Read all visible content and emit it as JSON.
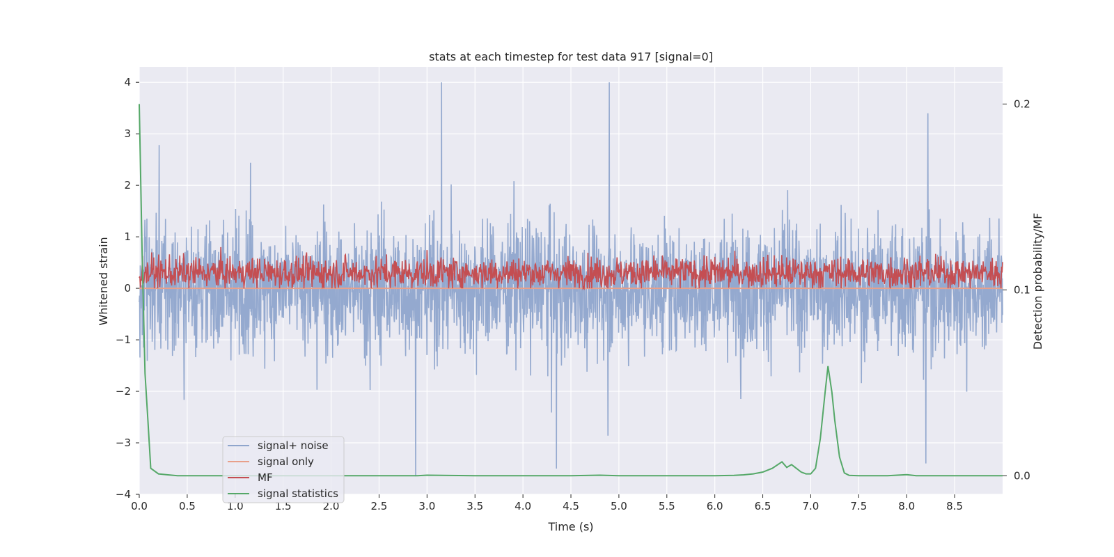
{
  "chart_data": {
    "type": "line",
    "title": "stats at each timestep for test data 917 [signal=0]",
    "xlabel": "Time (s)",
    "ylabel_left": "Whitened strain",
    "ylabel_right": "Detection probability/MF",
    "xlim": [
      0.0,
      9.0
    ],
    "ylim_left": [
      -4.0,
      4.3
    ],
    "ylim_right": [
      -0.01,
      0.22
    ],
    "x_ticks": [
      "0.0",
      "0.5",
      "1.0",
      "1.5",
      "2.0",
      "2.5",
      "3.0",
      "3.5",
      "4.0",
      "4.5",
      "5.0",
      "5.5",
      "6.0",
      "6.5",
      "7.0",
      "7.5",
      "8.0",
      "8.5"
    ],
    "y_ticks_left": [
      "4",
      "3",
      "2",
      "1",
      "0",
      "−1",
      "−2",
      "−3",
      "−4"
    ],
    "y_ticks_right": [
      "0.2",
      "0.1",
      "0.0"
    ],
    "grid": true,
    "legend_position": "lower-left",
    "colors": {
      "background": "#eaeaf2",
      "grid": "#ffffff",
      "noise": "#8fa5cc",
      "signal_only": "#e8a08a",
      "mf": "#c44e52",
      "stat": "#55a868"
    },
    "series": [
      {
        "name": "signal+ noise",
        "axis": "left",
        "description_values": "noisy whitened strain, roughly symmetric about 0, amplitude mostly within ±2, peaks near 4 at t=3.15 and t=4.9, dips near -3.65 at t=2.88",
        "peaks": [
          [
            3.15,
            4.0
          ],
          [
            4.9,
            4.0
          ],
          [
            2.88,
            -3.65
          ],
          [
            4.35,
            -3.5
          ],
          [
            8.2,
            -3.4
          ],
          [
            8.22,
            3.4
          ]
        ]
      },
      {
        "name": "signal only",
        "axis": "left",
        "x": [
          0.0,
          9.0
        ],
        "y": [
          0.0,
          0.0
        ]
      },
      {
        "name": "MF",
        "axis": "left",
        "description_values": "matched filter output oscillating between about 0 and 0.9",
        "range": [
          0.0,
          0.95
        ]
      },
      {
        "name": "signal statistics",
        "axis": "right",
        "x": [
          0.0,
          0.03,
          0.06,
          0.09,
          0.12,
          0.2,
          0.3,
          0.4,
          0.6,
          1.0,
          2.0,
          2.9,
          3.0,
          3.5,
          4.0,
          4.5,
          4.8,
          5.0,
          5.5,
          6.0,
          6.2,
          6.3,
          6.4,
          6.5,
          6.55,
          6.6,
          6.7,
          6.75,
          6.8,
          6.9,
          6.95,
          7.0,
          7.05,
          7.1,
          7.15,
          7.18,
          7.22,
          7.25,
          7.3,
          7.35,
          7.4,
          7.5,
          7.8,
          7.9,
          8.0,
          8.1,
          8.3,
          8.5,
          9.0
        ],
        "y": [
          0.2,
          0.12,
          0.055,
          0.03,
          0.004,
          0.001,
          0.0005,
          0.0,
          0.0,
          0.0,
          0.0,
          0.0,
          0.0003,
          0.0,
          0.0,
          0.0,
          0.0003,
          0.0,
          0.0,
          0.0,
          0.0002,
          0.0005,
          0.001,
          0.002,
          0.003,
          0.004,
          0.0075,
          0.0045,
          0.006,
          0.002,
          0.001,
          0.001,
          0.004,
          0.02,
          0.045,
          0.059,
          0.045,
          0.03,
          0.01,
          0.0015,
          0.0002,
          0.0,
          0.0,
          0.0003,
          0.0006,
          0.0,
          0.0,
          0.0,
          0.0
        ]
      }
    ]
  }
}
